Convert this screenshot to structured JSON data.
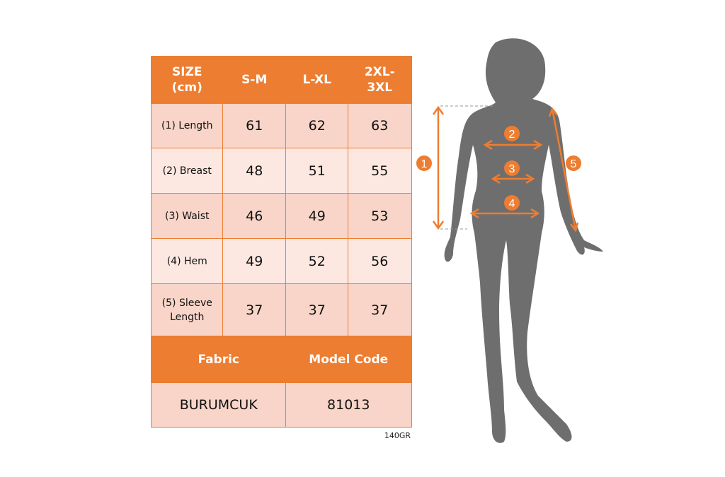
{
  "table": {
    "headers": [
      "SIZE (cm)",
      "S-M",
      "L-XL",
      "2XL-3XL"
    ],
    "rows": [
      {
        "label": "(1) Length",
        "values": [
          "61",
          "62",
          "63"
        ]
      },
      {
        "label": "(2) Breast",
        "values": [
          "48",
          "51",
          "55"
        ]
      },
      {
        "label": "(3) Waist",
        "values": [
          "46",
          "49",
          "53"
        ]
      },
      {
        "label": "(4) Hem",
        "values": [
          "49",
          "52",
          "56"
        ]
      },
      {
        "label": "(5) Sleeve Length",
        "values": [
          "37",
          "37",
          "37"
        ]
      }
    ],
    "footer_headers": [
      "Fabric",
      "Model Code"
    ],
    "footer_values": [
      "BURUMCUK",
      "81013"
    ]
  },
  "note": "140GR",
  "figure": {
    "markers": [
      "1",
      "2",
      "3",
      "4",
      "5"
    ]
  },
  "colors": {
    "accent": "#ED7D31",
    "cell_dark": "#F8D5C8",
    "cell_light": "#FCE8E1",
    "silhouette": "#6E6E6E"
  }
}
